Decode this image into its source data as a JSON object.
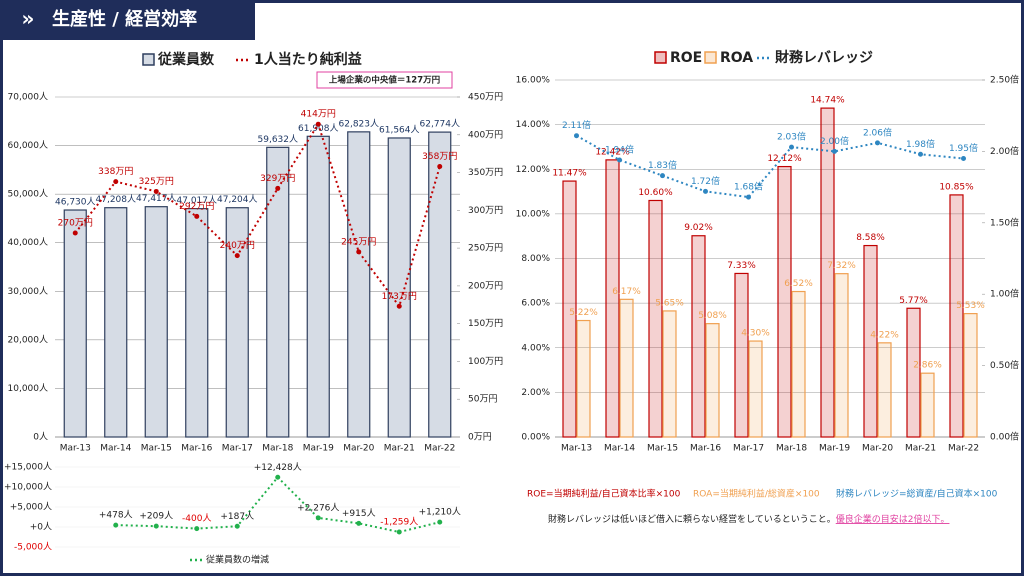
{
  "header": {
    "title": "生産性 / 経営効率"
  },
  "chart_data": [
    {
      "type": "bar",
      "categories": [
        "Mar-13",
        "Mar-14",
        "Mar-15",
        "Mar-16",
        "Mar-17",
        "Mar-18",
        "Mar-19",
        "Mar-20",
        "Mar-21",
        "Mar-22"
      ],
      "series": [
        {
          "name": "従業員数",
          "color": "#d6dce5",
          "values": [
            46730,
            47208,
            47417,
            47017,
            47204,
            59632,
            61908,
            62823,
            61564,
            62774
          ],
          "value_labels": [
            "46,730人",
            "47,208人",
            "47,417人",
            "47,017人",
            "47,204人",
            "59,632人",
            "61,908人",
            "62,823人",
            "61,564人",
            "62,774人"
          ]
        },
        {
          "name": "1人当たり純利益",
          "type": "line",
          "axis": "y2",
          "color": "#c00000",
          "values": [
            270,
            338,
            325,
            292,
            240,
            329,
            414,
            245,
            173,
            358
          ],
          "value_labels": [
            "270万円",
            "338万円",
            "325万円",
            "292万円",
            "240万円",
            "329万円",
            "414万円",
            "245万円",
            "173万円",
            "358万円"
          ]
        }
      ],
      "ylim": [
        0,
        70000
      ],
      "yticks": [
        {
          "value": 0,
          "label": "0人"
        },
        {
          "value": 10000,
          "label": "10,000人"
        },
        {
          "value": 20000,
          "label": "20,000人"
        },
        {
          "value": 30000,
          "label": "30,000人"
        },
        {
          "value": 40000,
          "label": "40,000人"
        },
        {
          "value": 50000,
          "label": "50,000人"
        },
        {
          "value": 60000,
          "label": "60,000人"
        },
        {
          "value": 70000,
          "label": "70,000人"
        }
      ],
      "y2lim": [
        0,
        450
      ],
      "y2ticks": [
        {
          "value": 0,
          "label": "0万円"
        },
        {
          "value": 50,
          "label": "50万円"
        },
        {
          "value": 100,
          "label": "100万円"
        },
        {
          "value": 150,
          "label": "150万円"
        },
        {
          "value": 200,
          "label": "200万円"
        },
        {
          "value": 250,
          "label": "250万円"
        },
        {
          "value": 300,
          "label": "300万円"
        },
        {
          "value": 350,
          "label": "350万円"
        },
        {
          "value": 400,
          "label": "400万円"
        },
        {
          "value": 450,
          "label": "450万円"
        }
      ],
      "annotation": "上場企業の中央値＝127万円"
    },
    {
      "type": "line",
      "series": [
        {
          "name": "従業員数の増減",
          "color": "#22b14c",
          "values": [
            478,
            209,
            -400,
            187,
            12428,
            2276,
            915,
            -1259,
            1210
          ],
          "value_labels": [
            "+478人",
            "+209人",
            "-400人",
            "+187人",
            "+12,428人",
            "+2,276人",
            "+915人",
            "-1,259人",
            "+1,210人"
          ]
        }
      ],
      "ylim": [
        -5000,
        15000
      ],
      "yticks": [
        {
          "value": -5000,
          "label": "-5,000人"
        },
        {
          "value": 0,
          "label": "+0人"
        },
        {
          "value": 5000,
          "label": "+5,000人"
        },
        {
          "value": 10000,
          "label": "+10,000人"
        },
        {
          "value": 15000,
          "label": "+15,000人"
        }
      ]
    },
    {
      "type": "bar",
      "categories": [
        "Mar-13",
        "Mar-14",
        "Mar-15",
        "Mar-16",
        "Mar-17",
        "Mar-18",
        "Mar-19",
        "Mar-20",
        "Mar-21",
        "Mar-22"
      ],
      "series": [
        {
          "name": "ROE",
          "color": "#c00000",
          "values": [
            11.47,
            12.42,
            10.6,
            9.02,
            7.33,
            12.12,
            14.74,
            8.58,
            5.77,
            10.85
          ],
          "value_labels": [
            "11.47%",
            "12.42%",
            "10.60%",
            "9.02%",
            "7.33%",
            "12.12%",
            "14.74%",
            "8.58%",
            "5.77%",
            "10.85%"
          ]
        },
        {
          "name": "ROA",
          "color": "#f0a050",
          "values": [
            5.22,
            6.17,
            5.65,
            5.08,
            4.3,
            6.52,
            7.32,
            4.22,
            2.86,
            5.53
          ],
          "value_labels": [
            "5.22%",
            "6.17%",
            "5.65%",
            "5.08%",
            "4.30%",
            "6.52%",
            "7.32%",
            "4.22%",
            "2.86%",
            "5.53%"
          ]
        },
        {
          "name": "財務レバレッジ",
          "type": "line",
          "axis": "y2",
          "color": "#2e86c1",
          "values": [
            2.11,
            1.94,
            1.83,
            1.72,
            1.68,
            2.03,
            2.0,
            2.06,
            1.98,
            1.95
          ],
          "value_labels": [
            "2.11倍",
            "1.94倍",
            "1.83倍",
            "1.72倍",
            "1.68倍",
            "2.03倍",
            "2.00倍",
            "2.06倍",
            "1.98倍",
            "1.95倍"
          ]
        }
      ],
      "ylim": [
        0,
        16
      ],
      "yticks": [
        {
          "value": 0,
          "label": "0.00%"
        },
        {
          "value": 2,
          "label": "2.00%"
        },
        {
          "value": 4,
          "label": "4.00%"
        },
        {
          "value": 6,
          "label": "6.00%"
        },
        {
          "value": 8,
          "label": "8.00%"
        },
        {
          "value": 10,
          "label": "10.00%"
        },
        {
          "value": 12,
          "label": "12.00%"
        },
        {
          "value": 14,
          "label": "14.00%"
        },
        {
          "value": 16,
          "label": "16.00%"
        }
      ],
      "y2lim": [
        0,
        2.5
      ],
      "y2ticks": [
        {
          "value": 0,
          "label": "0.00倍"
        },
        {
          "value": 0.5,
          "label": "0.50倍"
        },
        {
          "value": 1,
          "label": "1.00倍"
        },
        {
          "value": 1.5,
          "label": "1.50倍"
        },
        {
          "value": 2,
          "label": "2.00倍"
        },
        {
          "value": 2.5,
          "label": "2.50倍"
        }
      ]
    }
  ],
  "notes": {
    "roe": "ROE=当期純利益/自己資本比率×100",
    "roa": "ROA=当期純利益/総資産×100",
    "leverage": "財務レバレッジ=総資産/自己資本×100",
    "remark": "財務レバレッジは低いほど借入に頼らない経営をしているということ。",
    "highlight": "優良企業の目安は2倍以下。"
  }
}
